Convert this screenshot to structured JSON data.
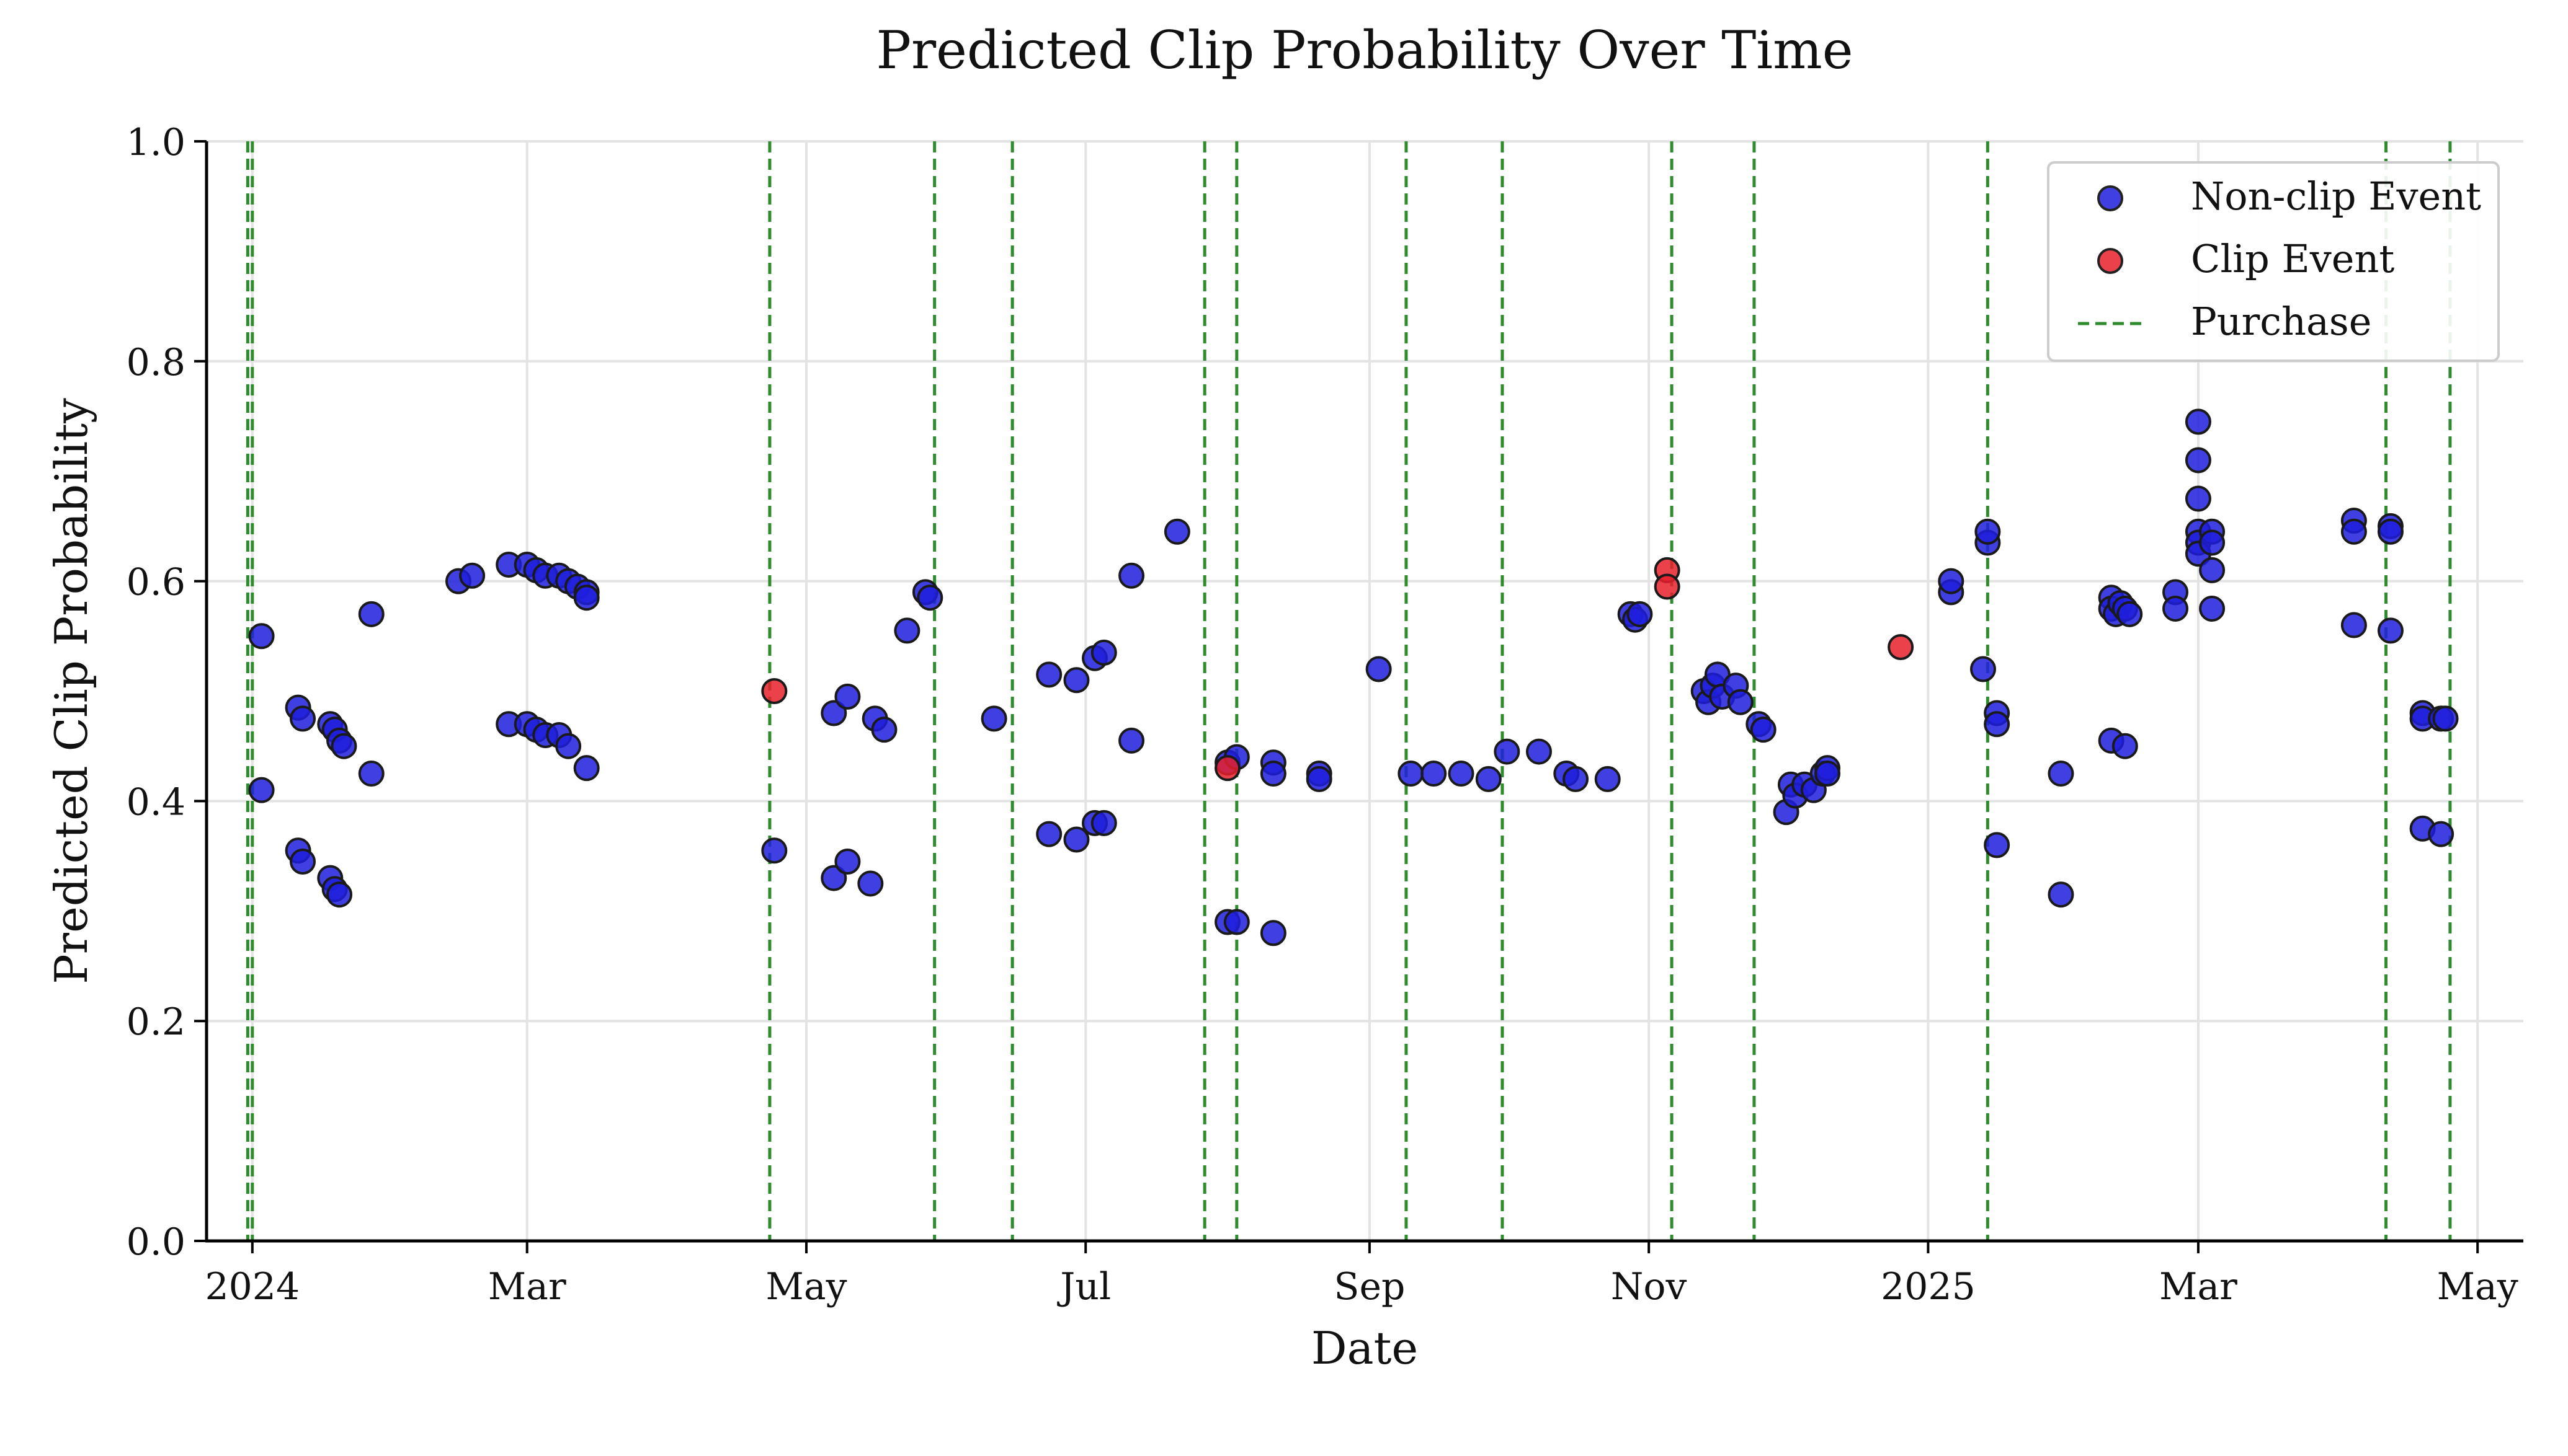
{
  "chart_data": {
    "type": "scatter",
    "title": "Predicted Clip Probability Over Time",
    "xlabel": "Date",
    "ylabel": "Predicted Clip Probability",
    "xlim": [
      "2023-12-22",
      "2025-05-11"
    ],
    "ylim": [
      0.0,
      1.0
    ],
    "y_ticks": [
      {
        "value": 0.0,
        "label": "0.0"
      },
      {
        "value": 0.2,
        "label": "0.2"
      },
      {
        "value": 0.4,
        "label": "0.4"
      },
      {
        "value": 0.6,
        "label": "0.6"
      },
      {
        "value": 0.8,
        "label": "0.8"
      },
      {
        "value": 1.0,
        "label": "1.0"
      }
    ],
    "x_ticks": [
      {
        "date": "2024-01-01",
        "label": "2024"
      },
      {
        "date": "2024-03-01",
        "label": "Mar"
      },
      {
        "date": "2024-05-01",
        "label": "May"
      },
      {
        "date": "2024-07-01",
        "label": "Jul"
      },
      {
        "date": "2024-09-01",
        "label": "Sep"
      },
      {
        "date": "2024-11-01",
        "label": "Nov"
      },
      {
        "date": "2025-01-01",
        "label": "2025"
      },
      {
        "date": "2025-03-01",
        "label": "Mar"
      },
      {
        "date": "2025-05-01",
        "label": "May"
      }
    ],
    "grid": true,
    "legend_position": "top-right",
    "legend": [
      {
        "label": "Non-clip Event",
        "marker": "circle",
        "color": "#1f1fdd"
      },
      {
        "label": "Clip Event",
        "marker": "circle",
        "color": "#e8202c"
      },
      {
        "label": "Purchase",
        "marker": "dashed-line",
        "color": "#2e8b2e"
      }
    ],
    "series": [
      {
        "name": "Non-clip Event",
        "color": "#1f1fdd",
        "points": [
          [
            "2024-01-03",
            0.55
          ],
          [
            "2024-01-03",
            0.41
          ],
          [
            "2024-01-11",
            0.485
          ],
          [
            "2024-01-12",
            0.475
          ],
          [
            "2024-01-11",
            0.355
          ],
          [
            "2024-01-12",
            0.345
          ],
          [
            "2024-01-18",
            0.47
          ],
          [
            "2024-01-19",
            0.465
          ],
          [
            "2024-01-20",
            0.455
          ],
          [
            "2024-01-21",
            0.45
          ],
          [
            "2024-01-18",
            0.33
          ],
          [
            "2024-01-19",
            0.32
          ],
          [
            "2024-01-20",
            0.315
          ],
          [
            "2024-01-27",
            0.57
          ],
          [
            "2024-01-27",
            0.425
          ],
          [
            "2024-02-15",
            0.6
          ],
          [
            "2024-02-18",
            0.605
          ],
          [
            "2024-02-26",
            0.615
          ],
          [
            "2024-03-01",
            0.615
          ],
          [
            "2024-03-03",
            0.61
          ],
          [
            "2024-03-05",
            0.605
          ],
          [
            "2024-03-08",
            0.605
          ],
          [
            "2024-03-10",
            0.6
          ],
          [
            "2024-03-12",
            0.595
          ],
          [
            "2024-03-14",
            0.59
          ],
          [
            "2024-03-14",
            0.585
          ],
          [
            "2024-02-26",
            0.47
          ],
          [
            "2024-03-01",
            0.47
          ],
          [
            "2024-03-03",
            0.465
          ],
          [
            "2024-03-05",
            0.46
          ],
          [
            "2024-03-08",
            0.46
          ],
          [
            "2024-03-10",
            0.45
          ],
          [
            "2024-03-14",
            0.43
          ],
          [
            "2024-04-24",
            0.355
          ],
          [
            "2024-05-07",
            0.48
          ],
          [
            "2024-05-10",
            0.495
          ],
          [
            "2024-05-16",
            0.475
          ],
          [
            "2024-05-18",
            0.465
          ],
          [
            "2024-05-07",
            0.33
          ],
          [
            "2024-05-10",
            0.345
          ],
          [
            "2024-05-15",
            0.325
          ],
          [
            "2024-05-23",
            0.555
          ],
          [
            "2024-05-27",
            0.59
          ],
          [
            "2024-05-28",
            0.585
          ],
          [
            "2024-06-11",
            0.475
          ],
          [
            "2024-06-23",
            0.515
          ],
          [
            "2024-06-29",
            0.51
          ],
          [
            "2024-06-23",
            0.37
          ],
          [
            "2024-06-29",
            0.365
          ],
          [
            "2024-07-03",
            0.53
          ],
          [
            "2024-07-05",
            0.535
          ],
          [
            "2024-07-03",
            0.38
          ],
          [
            "2024-07-05",
            0.38
          ],
          [
            "2024-07-11",
            0.605
          ],
          [
            "2024-07-11",
            0.455
          ],
          [
            "2024-07-21",
            0.645
          ],
          [
            "2024-08-01",
            0.435
          ],
          [
            "2024-08-03",
            0.44
          ],
          [
            "2024-08-01",
            0.29
          ],
          [
            "2024-08-03",
            0.29
          ],
          [
            "2024-08-11",
            0.435
          ],
          [
            "2024-08-11",
            0.425
          ],
          [
            "2024-08-11",
            0.28
          ],
          [
            "2024-08-21",
            0.425
          ],
          [
            "2024-08-21",
            0.42
          ],
          [
            "2024-09-03",
            0.52
          ],
          [
            "2024-09-10",
            0.425
          ],
          [
            "2024-09-15",
            0.425
          ],
          [
            "2024-09-21",
            0.425
          ],
          [
            "2024-09-27",
            0.42
          ],
          [
            "2024-10-01",
            0.445
          ],
          [
            "2024-10-08",
            0.445
          ],
          [
            "2024-10-14",
            0.425
          ],
          [
            "2024-10-16",
            0.42
          ],
          [
            "2024-10-23",
            0.42
          ],
          [
            "2024-10-28",
            0.57
          ],
          [
            "2024-10-29",
            0.565
          ],
          [
            "2024-10-30",
            0.57
          ],
          [
            "2024-11-13",
            0.5
          ],
          [
            "2024-11-14",
            0.49
          ],
          [
            "2024-11-15",
            0.505
          ],
          [
            "2024-11-16",
            0.515
          ],
          [
            "2024-11-17",
            0.495
          ],
          [
            "2024-11-20",
            0.505
          ],
          [
            "2024-11-21",
            0.49
          ],
          [
            "2024-11-25",
            0.47
          ],
          [
            "2024-11-26",
            0.465
          ],
          [
            "2024-12-01",
            0.39
          ],
          [
            "2024-12-02",
            0.415
          ],
          [
            "2024-12-03",
            0.405
          ],
          [
            "2024-12-05",
            0.415
          ],
          [
            "2024-12-07",
            0.41
          ],
          [
            "2024-12-09",
            0.425
          ],
          [
            "2024-12-10",
            0.43
          ],
          [
            "2024-12-10",
            0.425
          ],
          [
            "2025-01-06",
            0.59
          ],
          [
            "2025-01-06",
            0.6
          ],
          [
            "2025-01-14",
            0.635
          ],
          [
            "2025-01-14",
            0.645
          ],
          [
            "2025-01-13",
            0.52
          ],
          [
            "2025-01-16",
            0.48
          ],
          [
            "2025-01-16",
            0.47
          ],
          [
            "2025-01-16",
            0.36
          ],
          [
            "2025-01-30",
            0.425
          ],
          [
            "2025-01-30",
            0.315
          ],
          [
            "2025-02-10",
            0.585
          ],
          [
            "2025-02-10",
            0.575
          ],
          [
            "2025-02-11",
            0.57
          ],
          [
            "2025-02-12",
            0.58
          ],
          [
            "2025-02-13",
            0.575
          ],
          [
            "2025-02-14",
            0.57
          ],
          [
            "2025-02-10",
            0.455
          ],
          [
            "2025-02-13",
            0.45
          ],
          [
            "2025-02-24",
            0.59
          ],
          [
            "2025-02-24",
            0.575
          ],
          [
            "2025-03-01",
            0.745
          ],
          [
            "2025-03-01",
            0.71
          ],
          [
            "2025-03-01",
            0.675
          ],
          [
            "2025-03-01",
            0.645
          ],
          [
            "2025-03-01",
            0.635
          ],
          [
            "2025-03-01",
            0.625
          ],
          [
            "2025-03-04",
            0.645
          ],
          [
            "2025-03-04",
            0.635
          ],
          [
            "2025-03-04",
            0.61
          ],
          [
            "2025-03-04",
            0.575
          ],
          [
            "2025-04-04",
            0.655
          ],
          [
            "2025-04-04",
            0.645
          ],
          [
            "2025-04-04",
            0.56
          ],
          [
            "2025-04-12",
            0.65
          ],
          [
            "2025-04-12",
            0.645
          ],
          [
            "2025-04-12",
            0.555
          ],
          [
            "2025-04-19",
            0.48
          ],
          [
            "2025-04-19",
            0.475
          ],
          [
            "2025-04-23",
            0.475
          ],
          [
            "2025-04-24",
            0.475
          ],
          [
            "2025-04-19",
            0.375
          ],
          [
            "2025-04-23",
            0.37
          ]
        ]
      },
      {
        "name": "Clip Event",
        "color": "#e8202c",
        "points": [
          [
            "2024-04-24",
            0.5
          ],
          [
            "2024-08-01",
            0.43
          ],
          [
            "2024-11-05",
            0.61
          ],
          [
            "2024-11-05",
            0.595
          ],
          [
            "2024-12-26",
            0.54
          ]
        ]
      }
    ],
    "purchases": [
      "2023-12-31",
      "2024-01-01",
      "2024-04-23",
      "2024-05-29",
      "2024-06-15",
      "2024-07-27",
      "2024-08-03",
      "2024-09-09",
      "2024-09-30",
      "2024-11-06",
      "2024-11-24",
      "2025-01-14",
      "2025-04-11",
      "2025-04-25"
    ]
  }
}
